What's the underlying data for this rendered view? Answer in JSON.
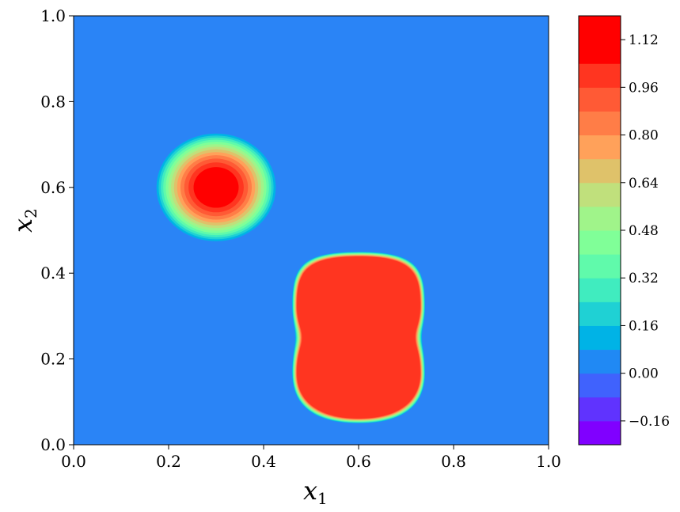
{
  "chart_data": {
    "type": "heatmap",
    "subtype": "filled-contour",
    "title": "",
    "xlabel": {
      "main": "x",
      "sub": "1"
    },
    "ylabel": {
      "main": "x",
      "sub": "2"
    },
    "xlim": [
      0.0,
      1.0
    ],
    "ylim": [
      0.0,
      1.0
    ],
    "xticks": [
      "0.0",
      "0.2",
      "0.4",
      "0.6",
      "0.8",
      "1.0"
    ],
    "yticks": [
      "0.0",
      "0.2",
      "0.4",
      "0.6",
      "0.8",
      "1.0"
    ],
    "xtick_values": [
      0.0,
      0.2,
      0.4,
      0.6,
      0.8,
      1.0
    ],
    "ytick_values": [
      0.0,
      0.2,
      0.4,
      0.6,
      0.8,
      1.0
    ],
    "colormap": "rainbow",
    "colorbar": {
      "range": [
        -0.24,
        1.2
      ],
      "levels": [
        -0.24,
        -0.16,
        -0.08,
        0.0,
        0.08,
        0.16,
        0.24,
        0.32,
        0.4,
        0.48,
        0.56,
        0.64,
        0.72,
        0.8,
        0.88,
        0.96,
        1.04,
        1.12,
        1.2
      ],
      "colors": [
        "#8000ff",
        "#6033fe",
        "#4062fd",
        "#2089f4",
        "#00b3e6",
        "#1fd1d4",
        "#40ecbf",
        "#60faab",
        "#80ff98",
        "#a0f48a",
        "#c0e07c",
        "#dfc26a",
        "#ffa15a",
        "#ff7d47",
        "#ff5a35",
        "#ff3520",
        "#ff0000",
        "#ff0000"
      ],
      "tick_labels": [
        "−0.16",
        "0.00",
        "0.16",
        "0.32",
        "0.48",
        "0.64",
        "0.80",
        "0.96",
        "1.12"
      ],
      "tick_values": [
        -0.16,
        0.0,
        0.16,
        0.32,
        0.48,
        0.64,
        0.8,
        0.96,
        1.12
      ]
    },
    "features": [
      {
        "name": "gaussian-peak",
        "center": [
          0.3,
          0.6
        ],
        "peak_value": 1.2,
        "radius": 0.13
      },
      {
        "name": "peanut-blob",
        "center": [
          0.6,
          0.25
        ],
        "value": 1.0,
        "x_range": [
          0.46,
          0.74
        ],
        "y_range": [
          0.05,
          0.45
        ]
      }
    ],
    "background_value": 0.0
  }
}
